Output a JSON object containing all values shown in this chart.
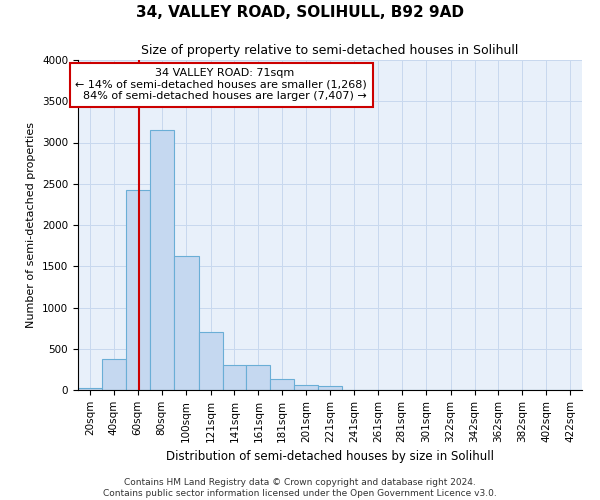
{
  "title": "34, VALLEY ROAD, SOLIHULL, B92 9AD",
  "subtitle": "Size of property relative to semi-detached houses in Solihull",
  "xlabel": "Distribution of semi-detached houses by size in Solihull",
  "ylabel": "Number of semi-detached properties",
  "footer_line1": "Contains HM Land Registry data © Crown copyright and database right 2024.",
  "footer_line2": "Contains public sector information licensed under the Open Government Licence v3.0.",
  "property_label": "34 VALLEY ROAD: 71sqm",
  "pct_smaller": 14,
  "pct_larger": 84,
  "n_smaller": 1268,
  "n_larger": 7407,
  "bin_labels": [
    "20sqm",
    "40sqm",
    "60sqm",
    "80sqm",
    "100sqm",
    "121sqm",
    "141sqm",
    "161sqm",
    "181sqm",
    "201sqm",
    "221sqm",
    "241sqm",
    "261sqm",
    "281sqm",
    "301sqm",
    "322sqm",
    "342sqm",
    "362sqm",
    "382sqm",
    "402sqm",
    "422sqm"
  ],
  "bin_left_edges": [
    20,
    40,
    60,
    80,
    100,
    121,
    141,
    161,
    181,
    201,
    221,
    241,
    261,
    281,
    301,
    322,
    342,
    362,
    382,
    402,
    422
  ],
  "bin_widths": [
    20,
    20,
    20,
    20,
    21,
    20,
    20,
    20,
    20,
    20,
    20,
    20,
    20,
    20,
    21,
    20,
    20,
    20,
    20,
    20,
    20
  ],
  "bar_values": [
    30,
    380,
    2420,
    3150,
    1630,
    700,
    300,
    300,
    130,
    60,
    50,
    0,
    0,
    0,
    0,
    0,
    0,
    0,
    0,
    0,
    0
  ],
  "bar_color": "#c5d8f0",
  "bar_edge_color": "#6aaed6",
  "grid_color": "#c8d8ee",
  "vline_x": 71,
  "vline_color": "#cc0000",
  "ylim": [
    0,
    4000
  ],
  "yticks": [
    0,
    500,
    1000,
    1500,
    2000,
    2500,
    3000,
    3500,
    4000
  ],
  "background_color": "#e8f0fa",
  "title_fontsize": 11,
  "subtitle_fontsize": 9,
  "annot_fontsize": 8,
  "ylabel_fontsize": 8,
  "xlabel_fontsize": 8.5,
  "tick_fontsize": 7.5,
  "footer_fontsize": 6.5
}
